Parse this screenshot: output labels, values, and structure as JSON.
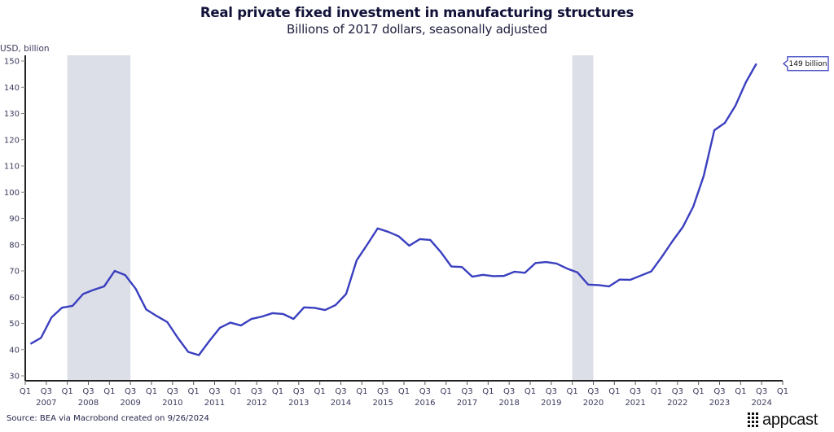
{
  "chart_data": {
    "type": "line",
    "title": "Real private fixed investment in manufacturing structures",
    "subtitle": "Billions of 2017 dollars, seasonally adjusted",
    "ylabel": "USD, billion",
    "xlabel": "",
    "ylim": [
      30,
      150
    ],
    "yticks": [
      30,
      40,
      50,
      60,
      70,
      80,
      90,
      100,
      110,
      120,
      130,
      140,
      150
    ],
    "x_start": "2007 Q1",
    "x_end": "2025 Q1",
    "frequency": "quarterly",
    "x_tick_quarters": [
      "Q1",
      "Q3"
    ],
    "x_year_labels": [
      "2007",
      "2008",
      "2009",
      "2010",
      "2011",
      "2012",
      "2013",
      "2014",
      "2015",
      "2016",
      "2017",
      "2018",
      "2019",
      "2020",
      "2021",
      "2022",
      "2023",
      "2024"
    ],
    "grid": false,
    "legend": "none",
    "shaded_regions": [
      {
        "name": "recession",
        "start": "2008 Q1",
        "end": "2009 Q3"
      },
      {
        "name": "recession",
        "start": "2020 Q1",
        "end": "2020 Q3"
      }
    ],
    "series": [
      {
        "name": "Real private fixed investment in manufacturing structures",
        "color": "#3a3fbf",
        "x": [
          "2007 Q1",
          "2007 Q2",
          "2007 Q3",
          "2007 Q4",
          "2008 Q1",
          "2008 Q2",
          "2008 Q3",
          "2008 Q4",
          "2009 Q1",
          "2009 Q2",
          "2009 Q3",
          "2009 Q4",
          "2010 Q1",
          "2010 Q2",
          "2010 Q3",
          "2010 Q4",
          "2011 Q1",
          "2011 Q2",
          "2011 Q3",
          "2011 Q4",
          "2012 Q1",
          "2012 Q2",
          "2012 Q3",
          "2012 Q4",
          "2013 Q1",
          "2013 Q2",
          "2013 Q3",
          "2013 Q4",
          "2014 Q1",
          "2014 Q2",
          "2014 Q3",
          "2014 Q4",
          "2015 Q1",
          "2015 Q2",
          "2015 Q3",
          "2015 Q4",
          "2016 Q1",
          "2016 Q2",
          "2016 Q3",
          "2016 Q4",
          "2017 Q1",
          "2017 Q2",
          "2017 Q3",
          "2017 Q4",
          "2018 Q1",
          "2018 Q2",
          "2018 Q3",
          "2018 Q4",
          "2019 Q1",
          "2019 Q2",
          "2019 Q3",
          "2019 Q4",
          "2020 Q1",
          "2020 Q2",
          "2020 Q3",
          "2020 Q4",
          "2021 Q1",
          "2021 Q2",
          "2021 Q3",
          "2021 Q4",
          "2022 Q1",
          "2022 Q2",
          "2022 Q3",
          "2022 Q4",
          "2023 Q1",
          "2023 Q2",
          "2023 Q3",
          "2023 Q4",
          "2024 Q1",
          "2024 Q2"
        ],
        "values": [
          42.2,
          44.5,
          52.3,
          56.0,
          56.7,
          61.2,
          62.8,
          64.1,
          70.0,
          68.4,
          63.2,
          55.3,
          52.8,
          50.5,
          44.5,
          39.1,
          37.9,
          43.3,
          48.3,
          50.3,
          49.2,
          51.7,
          52.6,
          53.9,
          53.6,
          51.7,
          56.1,
          55.9,
          55.1,
          57.0,
          61.2,
          74.0,
          80.0,
          86.2,
          84.9,
          83.2,
          79.6,
          82.1,
          81.8,
          77.2,
          71.7,
          71.5,
          67.8,
          68.5,
          68.0,
          68.1,
          69.7,
          69.3,
          73.0,
          73.4,
          72.8,
          70.9,
          69.4,
          64.8,
          64.6,
          64.1,
          66.7,
          66.6,
          68.2,
          69.8,
          75.3,
          81.2,
          86.7,
          94.5,
          106.3,
          123.6,
          126.4,
          132.9,
          141.9,
          149.0
        ]
      }
    ],
    "annotations": [
      {
        "text": "149 billion",
        "target": "last value",
        "value": 149
      }
    ],
    "colors": {
      "line": "#3a3fbf",
      "shading": "#dcdfe7",
      "axis": "#222222",
      "callout_border": "#3a3fbf"
    }
  },
  "footer": {
    "source": "Source: BEA via Macrobond created on 9/26/2024",
    "logo_text": "appcast"
  }
}
